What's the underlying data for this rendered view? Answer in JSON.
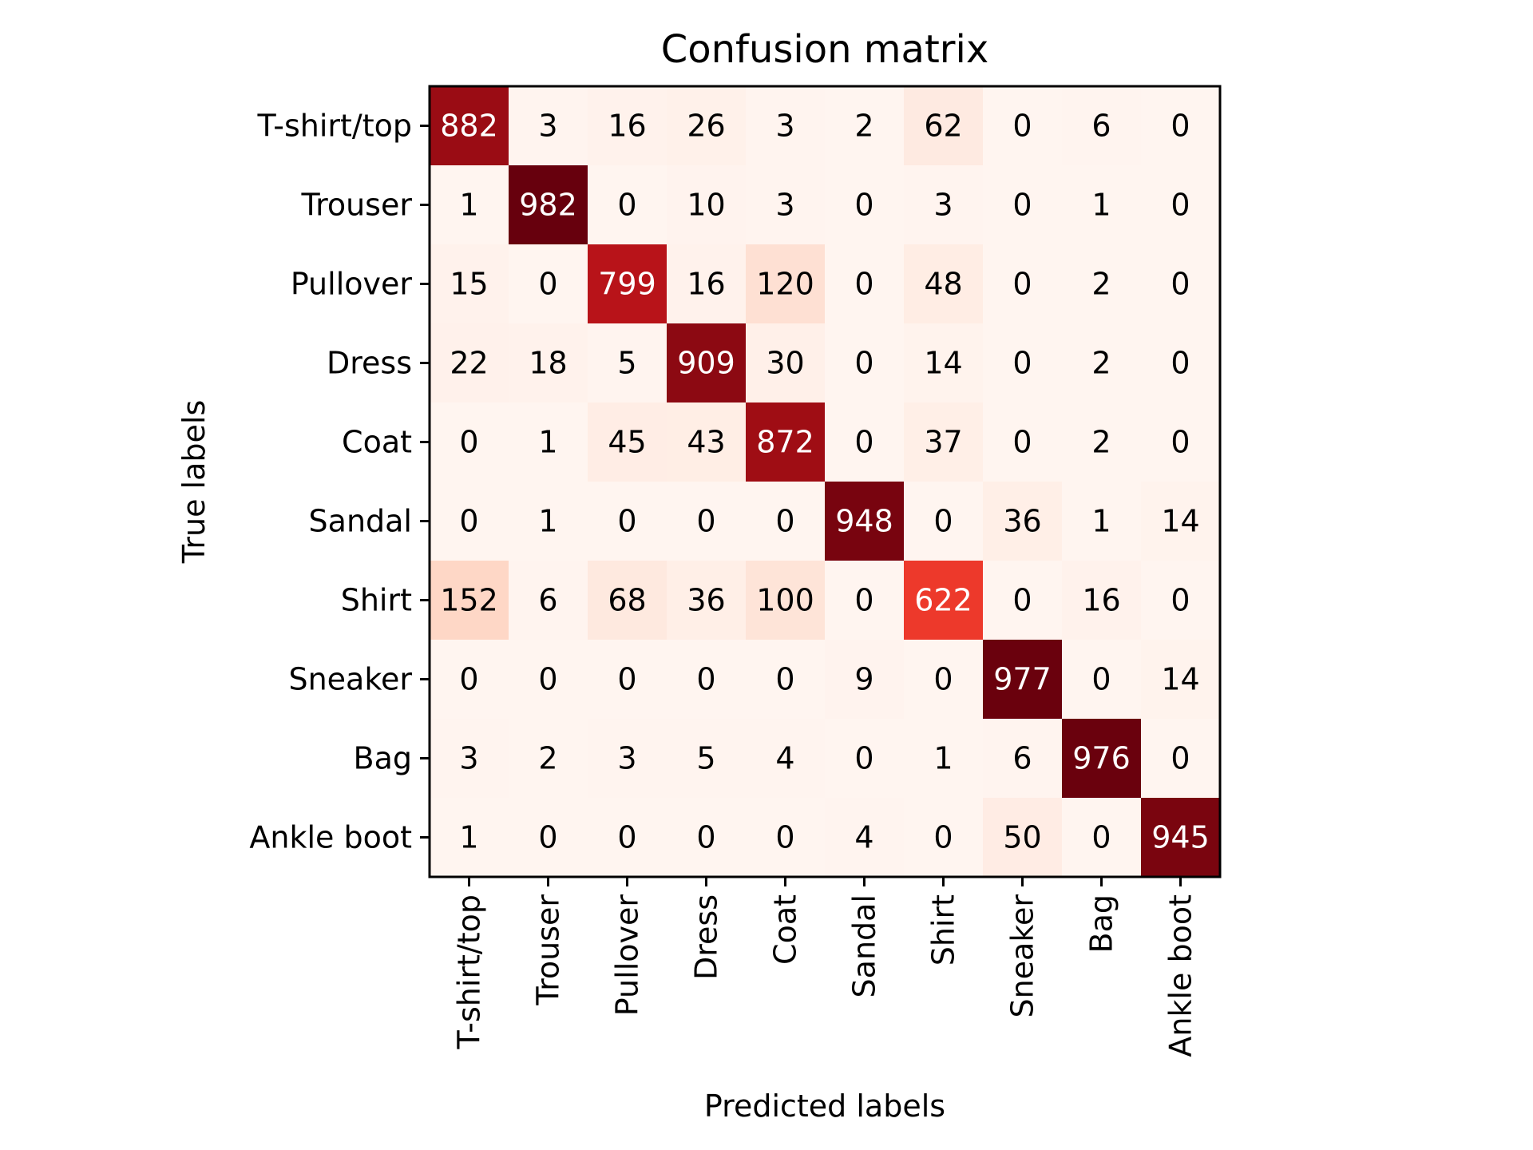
{
  "chart_data": {
    "type": "heatmap",
    "title": "Confusion matrix",
    "xlabel": "Predicted labels",
    "ylabel": "True labels",
    "x_categories": [
      "T-shirt/top",
      "Trouser",
      "Pullover",
      "Dress",
      "Coat",
      "Sandal",
      "Shirt",
      "Sneaker",
      "Bag",
      "Ankle boot"
    ],
    "y_categories": [
      "T-shirt/top",
      "Trouser",
      "Pullover",
      "Dress",
      "Coat",
      "Sandal",
      "Shirt",
      "Sneaker",
      "Bag",
      "Ankle boot"
    ],
    "values": [
      [
        882,
        3,
        16,
        26,
        3,
        2,
        62,
        0,
        6,
        0
      ],
      [
        1,
        982,
        0,
        10,
        3,
        0,
        3,
        0,
        1,
        0
      ],
      [
        15,
        0,
        799,
        16,
        120,
        0,
        48,
        0,
        2,
        0
      ],
      [
        22,
        18,
        5,
        909,
        30,
        0,
        14,
        0,
        2,
        0
      ],
      [
        0,
        1,
        45,
        43,
        872,
        0,
        37,
        0,
        2,
        0
      ],
      [
        0,
        1,
        0,
        0,
        0,
        948,
        0,
        36,
        1,
        14
      ],
      [
        152,
        6,
        68,
        36,
        100,
        0,
        622,
        0,
        16,
        0
      ],
      [
        0,
        0,
        0,
        0,
        0,
        9,
        0,
        977,
        0,
        14
      ],
      [
        3,
        2,
        3,
        5,
        4,
        0,
        1,
        6,
        976,
        0
      ],
      [
        1,
        0,
        0,
        0,
        0,
        4,
        0,
        50,
        0,
        945
      ]
    ],
    "colormap": "Reds",
    "color_range": [
      0,
      982
    ],
    "colors": {
      "low": "#fff5f0",
      "high": "#67000d",
      "text_dark": "#000000",
      "text_light": "#ffffff"
    },
    "grid": false
  }
}
